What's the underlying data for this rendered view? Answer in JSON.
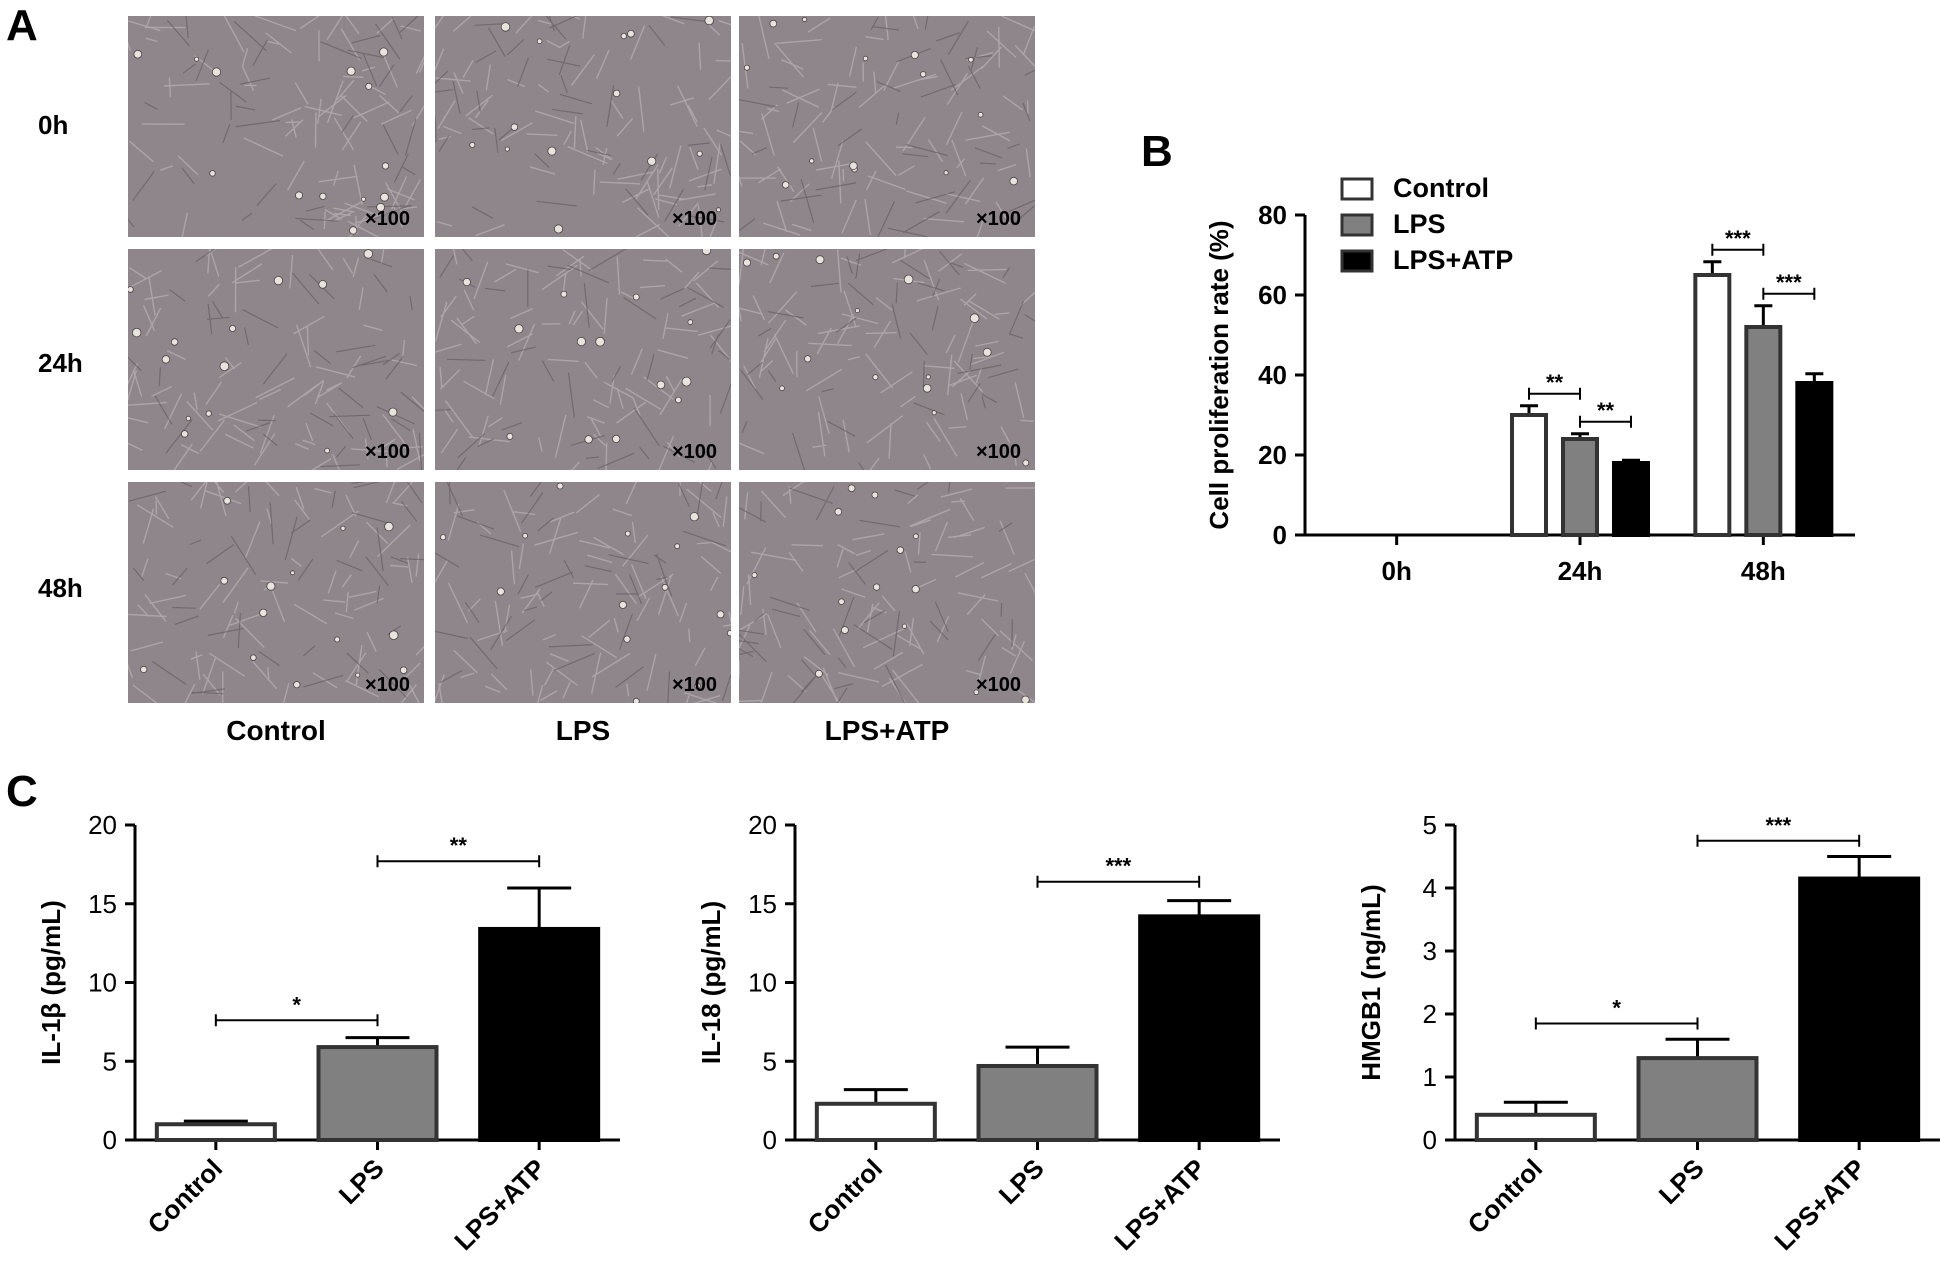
{
  "panel_letters": {
    "a": "A",
    "b": "B",
    "c": "C"
  },
  "micrographs": {
    "row_labels": [
      "0h",
      "24h",
      "48h"
    ],
    "col_labels": [
      "Control",
      "LPS",
      "LPS+ATP"
    ],
    "magnification": "×100"
  },
  "chart_data": [
    {
      "id": "B",
      "type": "bar",
      "ylabel": "Cell proliferation rate (%)",
      "categories": [
        "0h",
        "24h",
        "48h"
      ],
      "ylim": [
        0,
        80
      ],
      "yticks": [
        0,
        20,
        40,
        60,
        80
      ],
      "legend_position": "top-left",
      "series": [
        {
          "name": "Control",
          "color": "#ffffff",
          "values": [
            0,
            30,
            65
          ],
          "errors": [
            0,
            2.3,
            3.3
          ]
        },
        {
          "name": "LPS",
          "color": "#808080",
          "values": [
            0,
            24,
            52
          ],
          "errors": [
            0,
            1.3,
            5.3
          ]
        },
        {
          "name": "LPS+ATP",
          "color": "#000000",
          "values": [
            0,
            18,
            38
          ],
          "errors": [
            0,
            0.7,
            2.3
          ]
        }
      ],
      "significance": [
        {
          "group": "24h",
          "from": "Control",
          "to": "LPS",
          "label": "**"
        },
        {
          "group": "24h",
          "from": "LPS",
          "to": "LPS+ATP",
          "label": "**"
        },
        {
          "group": "48h",
          "from": "Control",
          "to": "LPS",
          "label": "***"
        },
        {
          "group": "48h",
          "from": "LPS",
          "to": "LPS+ATP",
          "label": "***"
        }
      ]
    },
    {
      "id": "C1",
      "type": "bar",
      "ylabel": "IL-1β (pg/mL)",
      "categories": [
        "Control",
        "LPS",
        "LPS+ATP"
      ],
      "colors": [
        "#ffffff",
        "#808080",
        "#000000"
      ],
      "values": [
        1.0,
        5.9,
        13.4
      ],
      "errors": [
        0.2,
        0.6,
        2.6
      ],
      "ylim": [
        0,
        20
      ],
      "yticks": [
        0,
        5,
        10,
        15,
        20
      ],
      "significance": [
        {
          "from": "Control",
          "to": "LPS",
          "label": "*",
          "level": 7.6
        },
        {
          "from": "LPS",
          "to": "LPS+ATP",
          "label": "**",
          "level": 17.7
        }
      ]
    },
    {
      "id": "C2",
      "type": "bar",
      "ylabel": "IL-18 (pg/mL)",
      "categories": [
        "Control",
        "LPS",
        "LPS+ATP"
      ],
      "colors": [
        "#ffffff",
        "#808080",
        "#000000"
      ],
      "values": [
        2.3,
        4.7,
        14.2
      ],
      "errors": [
        0.9,
        1.2,
        1.0
      ],
      "ylim": [
        0,
        20
      ],
      "yticks": [
        0,
        5,
        10,
        15,
        20
      ],
      "significance": [
        {
          "from": "LPS",
          "to": "LPS+ATP",
          "label": "***",
          "level": 16.4
        }
      ]
    },
    {
      "id": "C3",
      "type": "bar",
      "ylabel": "HMGB1 (ng/mL)",
      "categories": [
        "Control",
        "LPS",
        "LPS+ATP"
      ],
      "colors": [
        "#ffffff",
        "#808080",
        "#000000"
      ],
      "values": [
        0.4,
        1.3,
        4.15
      ],
      "errors": [
        0.2,
        0.3,
        0.35
      ],
      "ylim": [
        0,
        5
      ],
      "yticks": [
        0,
        1,
        2,
        3,
        4,
        5
      ],
      "significance": [
        {
          "from": "Control",
          "to": "LPS",
          "label": "*",
          "level": 1.85
        },
        {
          "from": "LPS",
          "to": "LPS+ATP",
          "label": "***",
          "level": 4.75
        }
      ]
    }
  ]
}
